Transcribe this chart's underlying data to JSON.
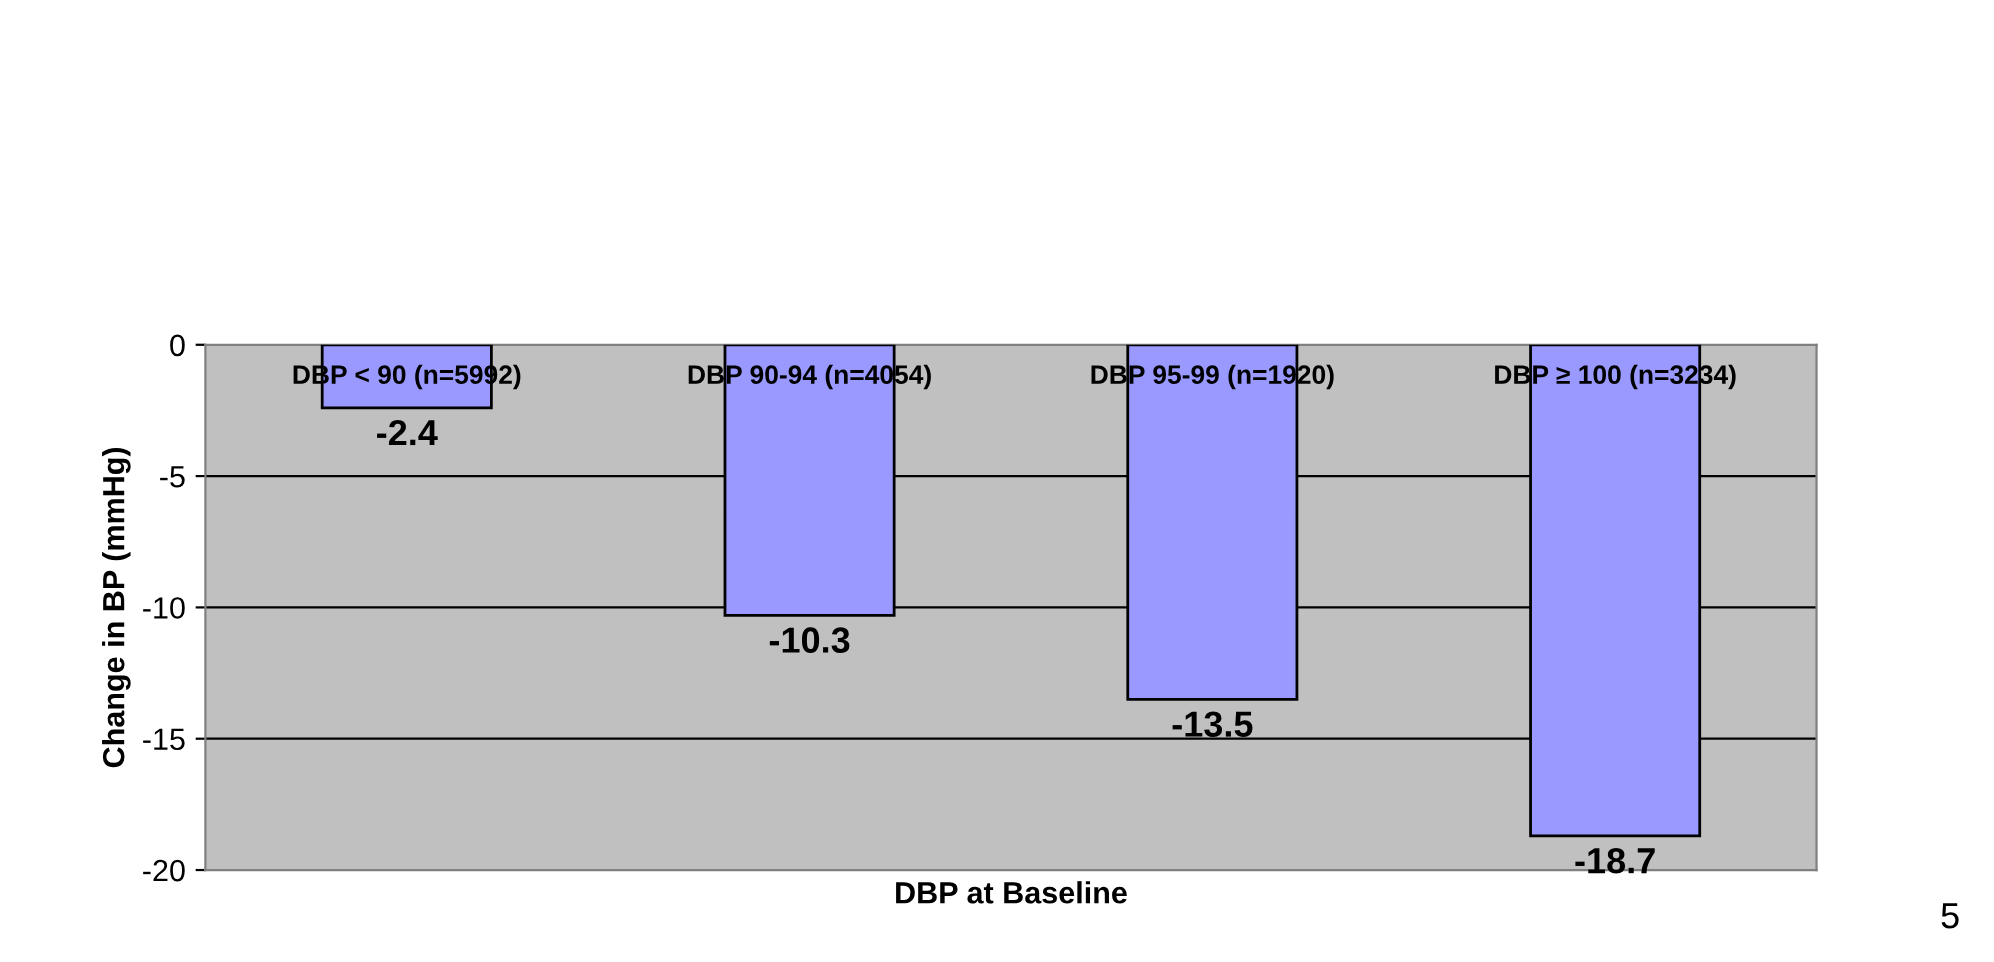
{
  "chart_data": {
    "type": "bar",
    "xlabel": "DBP at Baseline",
    "ylabel": "Change in BP (mmHg)",
    "categories": [
      "DBP < 90 (n=5992)",
      "DBP 90-94 (n=4054)",
      "DBP 95-99 (n=1920)",
      "DBP ≥ 100 (n=3234)"
    ],
    "values": [
      -2.4,
      -10.3,
      -13.5,
      -18.7
    ],
    "color": "#9999ff",
    "ylim": [
      -20,
      0
    ],
    "yticks": [
      -20,
      -15,
      -10,
      -5,
      0
    ],
    "grid": "y",
    "data_labels": true,
    "annotations": [
      "5"
    ]
  }
}
